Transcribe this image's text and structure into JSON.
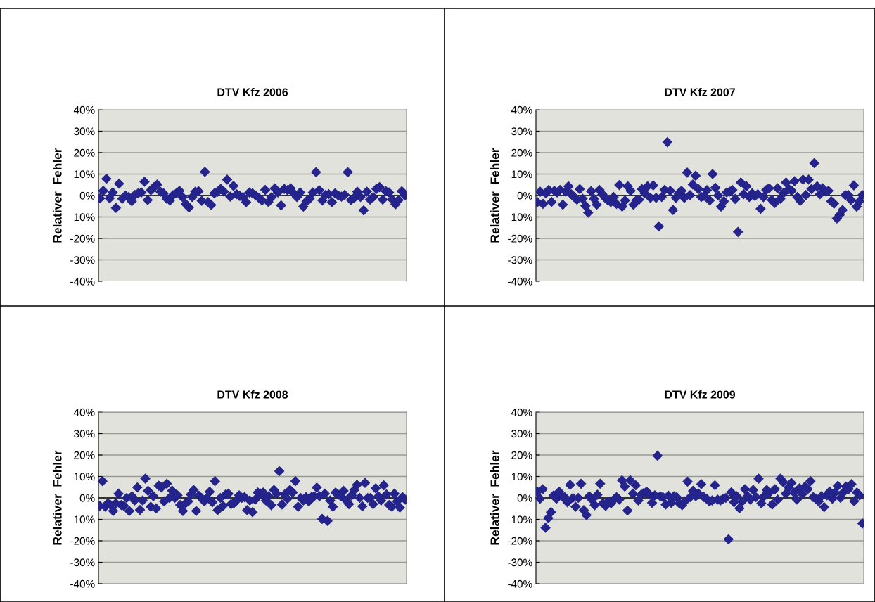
{
  "chart_data": [
    {
      "type": "scatter",
      "title": "DTV Kfz 2006",
      "ylabel": "Relativer  Fehler",
      "categories": [
        null,
        null,
        null,
        null,
        null,
        null,
        null,
        null,
        null,
        null,
        null,
        null,
        null,
        null,
        null,
        null,
        null,
        null,
        null,
        null,
        null,
        null,
        null,
        null,
        null,
        null,
        null,
        null,
        null,
        null,
        null,
        null,
        null,
        null,
        null,
        null,
        null,
        null,
        null,
        null,
        null,
        null,
        null,
        null,
        null,
        null,
        null,
        null,
        null,
        null,
        null,
        null,
        null,
        null,
        null,
        null,
        null,
        null,
        null,
        null,
        null,
        null,
        null,
        null,
        null,
        null,
        null,
        null,
        null,
        null,
        null,
        null,
        null,
        null,
        null,
        null,
        null,
        null,
        null,
        null,
        null,
        null,
        null,
        null,
        null,
        null,
        null,
        null,
        null,
        null,
        null,
        null,
        null,
        null,
        null,
        null,
        null
      ],
      "series": [
        {
          "color": "#24248c",
          "values": [
            -1.3,
            2.2,
            7.8,
            -1.3,
            1.4,
            -5.8,
            5.5,
            -1.5,
            0,
            -0.7,
            -2.7,
            0.3,
            1,
            1.4,
            6.4,
            -2.1,
            2.5,
            3.9,
            5.1,
            1.8,
            1,
            -1.5,
            -2.3,
            0.2,
            1,
            2.2,
            -0.8,
            -4,
            -5.6,
            -0.7,
            1.8,
            2,
            -2.5,
            11,
            -3.1,
            -4.4,
            1,
            1.8,
            3.1,
            1.8,
            7.4,
            -0.5,
            4.5,
            0.6,
            -0.2,
            -0.7,
            -3.1,
            1.4,
            1,
            0,
            -1.1,
            -2.3,
            2.6,
            -3,
            -0.8,
            3.3,
            1.4,
            -4.6,
            3.1,
            2.5,
            3.3,
            1,
            -0.7,
            1.4,
            -5.2,
            -2.7,
            -1.5,
            1.4,
            10.9,
            2.5,
            -2.3,
            0.3,
            0.6,
            -3.1,
            1,
            0,
            -0.5,
            0.3,
            10.9,
            -2.1,
            -1.1,
            1.8,
            -0.7,
            -6.9,
            1.8,
            -1.9,
            -0.7,
            3.1,
            3.9,
            -1.9,
            2,
            1.4,
            -1.9,
            -4.1,
            -2.1,
            2,
            0
          ]
        }
      ],
      "ylim": [
        -40,
        40
      ],
      "yticks": [
        {
          "value": -40,
          "label": "-40%"
        },
        {
          "value": -30,
          "label": "-30%"
        },
        {
          "value": -20,
          "label": "-20%"
        },
        {
          "value": -10,
          "label": "10%"
        },
        {
          "value": 0,
          "label": "0%"
        },
        {
          "value": 10,
          "label": "10%"
        },
        {
          "value": 20,
          "label": "20%"
        },
        {
          "value": 30,
          "label": "30%"
        },
        {
          "value": 40,
          "label": "40%"
        }
      ],
      "grid": "y",
      "marker": "diamond",
      "tick_labels": "y"
    },
    {
      "type": "scatter",
      "title": "DTV Kfz 2007",
      "ylabel": "Relativer  Fehler",
      "categories": [
        null,
        null,
        null,
        null,
        null,
        null,
        null,
        null,
        null,
        null,
        null,
        null,
        null,
        null,
        null,
        null,
        null,
        null,
        null,
        null,
        null,
        null,
        null,
        null,
        null,
        null,
        null,
        null,
        null,
        null,
        null,
        null,
        null,
        null,
        null,
        null,
        null,
        null,
        null,
        null,
        null,
        null,
        null,
        null,
        null,
        null,
        null,
        null,
        null,
        null,
        null,
        null,
        null,
        null,
        null,
        null,
        null,
        null,
        null,
        null,
        null,
        null,
        null,
        null,
        null,
        null,
        null,
        null,
        null,
        null,
        null,
        null,
        null,
        null,
        null,
        null,
        null,
        null,
        null,
        null,
        null,
        null,
        null,
        null,
        null,
        null,
        null,
        null,
        null,
        null,
        null,
        null,
        null,
        null,
        null,
        null,
        null,
        null,
        null,
        null,
        null,
        null,
        null,
        null,
        null,
        null,
        null,
        null,
        null,
        null,
        null,
        null,
        null,
        null,
        null,
        null
      ],
      "series": [
        {
          "color": "#24248c",
          "values": [
            -3.1,
            1.8,
            -3.9,
            1,
            2.6,
            -3,
            2.2,
            1.4,
            2.6,
            -4.3,
            1.8,
            4.3,
            0.6,
            -0.7,
            -1.9,
            3,
            -1.5,
            -4.8,
            -8,
            2,
            -1.5,
            -4.3,
            2.6,
            0.6,
            -1.1,
            -2.3,
            -3.1,
            -0.7,
            -3.9,
            4.9,
            -5.2,
            -2.3,
            4.3,
            2.2,
            -4.3,
            -2.3,
            -1.9,
            3,
            1,
            4.3,
            -1.1,
            4.7,
            -1.1,
            -14.4,
            -0.7,
            2.6,
            24.9,
            2.2,
            -6.8,
            -1.1,
            1,
            2.2,
            -1.1,
            10.7,
            0.2,
            5.1,
            9.2,
            3,
            -0.7,
            -0.2,
            2.5,
            -2.3,
            10,
            3.6,
            0,
            -5.2,
            -2.7,
            1.4,
            1.8,
            2.6,
            -1.6,
            -17,
            6.1,
            0.6,
            4.3,
            -0.7,
            1,
            -0.2,
            0.6,
            -6.2,
            -0.8,
            2.6,
            3.4,
            -2.1,
            -3.5,
            3.4,
            -1.5,
            1,
            6.1,
            3,
            2.2,
            6.7,
            -0.7,
            -2.5,
            7.4,
            0.2,
            7.4,
            3,
            15.1,
            4.3,
            0.6,
            3.4,
            2,
            2.2,
            -2.7,
            -3.8,
            -10.7,
            -9,
            -6.8,
            0.2,
            0.3,
            -2.1,
            4.7,
            -5.2,
            -2.7,
            0.2
          ]
        }
      ],
      "ylim": [
        -40,
        40
      ],
      "yticks": [
        {
          "value": -40,
          "label": "-40%"
        },
        {
          "value": -30,
          "label": "-30%"
        },
        {
          "value": -20,
          "label": "-20%"
        },
        {
          "value": -10,
          "label": "10%"
        },
        {
          "value": 0,
          "label": "0%"
        },
        {
          "value": 10,
          "label": "10%"
        },
        {
          "value": 20,
          "label": "20%"
        },
        {
          "value": 30,
          "label": "30%"
        },
        {
          "value": 40,
          "label": "40%"
        }
      ],
      "grid": "y",
      "marker": "diamond",
      "tick_labels": "y"
    },
    {
      "type": "scatter",
      "title": "DTV Kfz 2008",
      "ylabel": "Relativer  Fehler",
      "categories": [
        null,
        null,
        null,
        null,
        null,
        null,
        null,
        null,
        null,
        null,
        null,
        null,
        null,
        null,
        null,
        null,
        null,
        null,
        null,
        null,
        null,
        null,
        null,
        null,
        null,
        null,
        null,
        null,
        null,
        null,
        null,
        null,
        null,
        null,
        null,
        null,
        null,
        null,
        null,
        null,
        null,
        null,
        null,
        null,
        null,
        null,
        null,
        null,
        null,
        null,
        null,
        null,
        null,
        null,
        null,
        null,
        null,
        null,
        null,
        null,
        null,
        null,
        null,
        null,
        null,
        null,
        null,
        null,
        null,
        null,
        null,
        null,
        null,
        null,
        null,
        null,
        null,
        null,
        null,
        null,
        null,
        null,
        null,
        null,
        null,
        null,
        null,
        null,
        null,
        null,
        null,
        null,
        null,
        null,
        null,
        null,
        null,
        null,
        null,
        null,
        null,
        null,
        null,
        null,
        null,
        null,
        null,
        null,
        null,
        null,
        null,
        null,
        null,
        null,
        null
      ],
      "series": [
        {
          "color": "#24248c",
          "values": [
            -3.7,
            7.8,
            -4.1,
            -2.5,
            -3.3,
            -6.1,
            -2.5,
            2,
            -3.3,
            -3.7,
            0,
            -6.1,
            0.8,
            -1.2,
            4.9,
            -5.6,
            -1.2,
            9,
            3.3,
            -4.1,
            0.8,
            -4.9,
            5.7,
            4.9,
            -1.6,
            6.6,
            0,
            3.4,
            0,
            1.2,
            -3.3,
            -6.1,
            -2.5,
            -1.6,
            1.6,
            3.7,
            -6.1,
            1,
            0,
            -1.6,
            0,
            2.9,
            -2,
            7.8,
            -5.7,
            0,
            -3.7,
            1.6,
            2,
            -2.9,
            -2.5,
            -1.2,
            1.2,
            0,
            0.4,
            -5.7,
            -1.2,
            -6.6,
            -0.8,
            2.5,
            2,
            2.5,
            -1.2,
            0.8,
            -3.4,
            3.7,
            2,
            12.5,
            -3.1,
            1.6,
            -0.4,
            3.7,
            2.5,
            7.8,
            -4.1,
            0,
            -1.2,
            0.4,
            -1.6,
            0.4,
            0.8,
            4.8,
            0.8,
            -9.8,
            2,
            -10.7,
            -1.2,
            -4.1,
            2.5,
            1.5,
            0.8,
            3.3,
            -1.2,
            -2.9,
            1.2,
            3.7,
            6.1,
            0,
            -3.9,
            7,
            0,
            0,
            -2.9,
            4.5,
            0.7,
            -1.2,
            5.9,
            1.6,
            -3.3,
            -4.1,
            2,
            -1.6,
            -4.5,
            0.4,
            -0.8
          ]
        }
      ],
      "ylim": [
        -40,
        40
      ],
      "yticks": [
        {
          "value": -40,
          "label": "-40%"
        },
        {
          "value": -30,
          "label": "-30%"
        },
        {
          "value": -20,
          "label": "-20%"
        },
        {
          "value": -10,
          "label": "10%"
        },
        {
          "value": 0,
          "label": "0%"
        },
        {
          "value": 10,
          "label": "10%"
        },
        {
          "value": 20,
          "label": "20%"
        },
        {
          "value": 30,
          "label": "30%"
        },
        {
          "value": 40,
          "label": "40%"
        }
      ],
      "grid": "y",
      "marker": "diamond",
      "tick_labels": "y"
    },
    {
      "type": "scatter",
      "title": "DTV Kfz 2009",
      "ylabel": "Relativer  Fehler",
      "categories": [
        null,
        null,
        null,
        null,
        null,
        null,
        null,
        null,
        null,
        null,
        null,
        null,
        null,
        null,
        null,
        null,
        null,
        null,
        null,
        null,
        null,
        null,
        null,
        null,
        null,
        null,
        null,
        null,
        null,
        null,
        null,
        null,
        null,
        null,
        null,
        null,
        null,
        null,
        null,
        null,
        null,
        null,
        null,
        null,
        null,
        null,
        null,
        null,
        null,
        null,
        null,
        null,
        null,
        null,
        null,
        null,
        null,
        null,
        null,
        null,
        null,
        null,
        null,
        null,
        null,
        null,
        null,
        null,
        null,
        null,
        null,
        null,
        null,
        null,
        null,
        null,
        null,
        null,
        null,
        null,
        null,
        null,
        null,
        null,
        null,
        null,
        null,
        null,
        null,
        null,
        null,
        null,
        null,
        null,
        null,
        null,
        null,
        null,
        null,
        null,
        null,
        null,
        null,
        null,
        null,
        null,
        null,
        null,
        null,
        null,
        null,
        null,
        null,
        null,
        null,
        null,
        null,
        null,
        null,
        null
      ],
      "series": [
        {
          "color": "#24248c",
          "values": [
            2.9,
            -0.4,
            4.1,
            -13.9,
            -9.4,
            -6.6,
            1.2,
            -0.4,
            2.9,
            0.8,
            0.4,
            -2,
            6.1,
            0,
            -4.1,
            0,
            6.6,
            -5.7,
            -8,
            0.8,
            -0.8,
            -3.4,
            1.5,
            6.6,
            -2.5,
            -3.7,
            -1.6,
            -2.5,
            -0.8,
            0.4,
            -0.8,
            8.2,
            5.3,
            -5.9,
            8.2,
            2,
            5.9,
            -1.2,
            1.5,
            2.3,
            2.9,
            1.6,
            -2.3,
            1.2,
            19.7,
            0.8,
            0.4,
            -3.1,
            1,
            -2.3,
            0.8,
            0.4,
            -2.5,
            -3.4,
            -1.6,
            7.6,
            0.4,
            3.3,
            0.8,
            2,
            6.4,
            0.4,
            -0.4,
            -1.6,
            -1.2,
            5.9,
            -0.8,
            -1.2,
            -0.4,
            0,
            -19.3,
            2.6,
            -2,
            0.8,
            -4.8,
            -1.6,
            4.1,
            0.8,
            -0.8,
            3.7,
            0.4,
            9,
            -2.5,
            0.8,
            3.7,
            2.5,
            -3.1,
            4.1,
            -0.8,
            9,
            7.4,
            2,
            4.9,
            7,
            2.5,
            -0.8,
            4.5,
            1.8,
            5.3,
            4.1,
            7.8,
            0.4,
            -0.4,
            -1.6,
            0.8,
            -4.3,
            1.2,
            2.9,
            -0.4,
            2.5,
            5.6,
            0,
            2.5,
            5.3,
            4.1,
            6.4,
            -1.5,
            2.5,
            1.2,
            -11.9
          ]
        }
      ],
      "ylim": [
        -40,
        40
      ],
      "yticks": [
        {
          "value": -40,
          "label": "-40%"
        },
        {
          "value": -30,
          "label": "-30%"
        },
        {
          "value": -20,
          "label": "-20%"
        },
        {
          "value": -10,
          "label": "10%"
        },
        {
          "value": 0,
          "label": "0%"
        },
        {
          "value": 10,
          "label": "10%"
        },
        {
          "value": 20,
          "label": "20%"
        },
        {
          "value": 30,
          "label": "30%"
        },
        {
          "value": 40,
          "label": "40%"
        }
      ],
      "grid": "y",
      "marker": "diamond",
      "tick_labels": "y"
    }
  ]
}
